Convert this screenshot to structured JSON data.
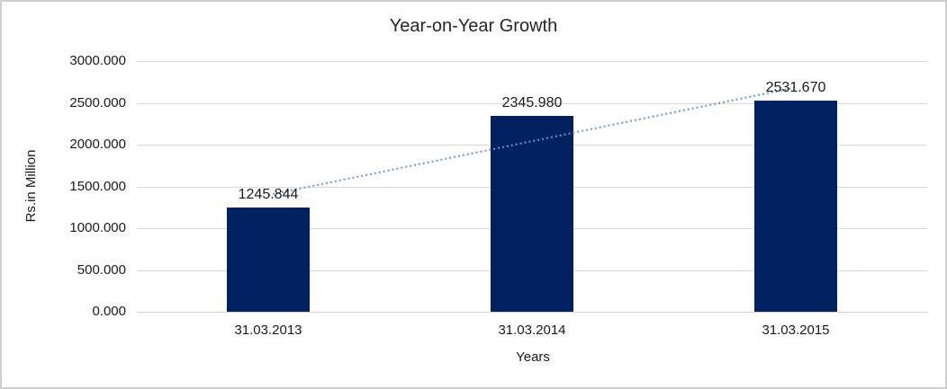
{
  "chart_data": {
    "type": "bar",
    "title": "Year-on-Year Growth",
    "xlabel": "Years",
    "ylabel": "Rs.in Million",
    "categories": [
      "31.03.2013",
      "31.03.2014",
      "31.03.2015"
    ],
    "values": [
      1245.844,
      2345.98,
      2531.67
    ],
    "data_labels": [
      "1245.844",
      "2345.980",
      "2531.670"
    ],
    "ylim": [
      0,
      3000
    ],
    "ytick_step": 500,
    "ytick_labels": [
      "0.000",
      "500.000",
      "1000.000",
      "1500.000",
      "2000.000",
      "2500.000",
      "3000.000"
    ],
    "grid": true,
    "legend": "none",
    "trendline": {
      "type": "linear",
      "style": "dotted"
    },
    "colors": {
      "bar": "#002060",
      "trendline": "#5b9bd5",
      "gridline": "#d9d9d9",
      "text": "#1a1a1a",
      "frame_border": "#d0cece",
      "background": "#ffffff"
    }
  }
}
